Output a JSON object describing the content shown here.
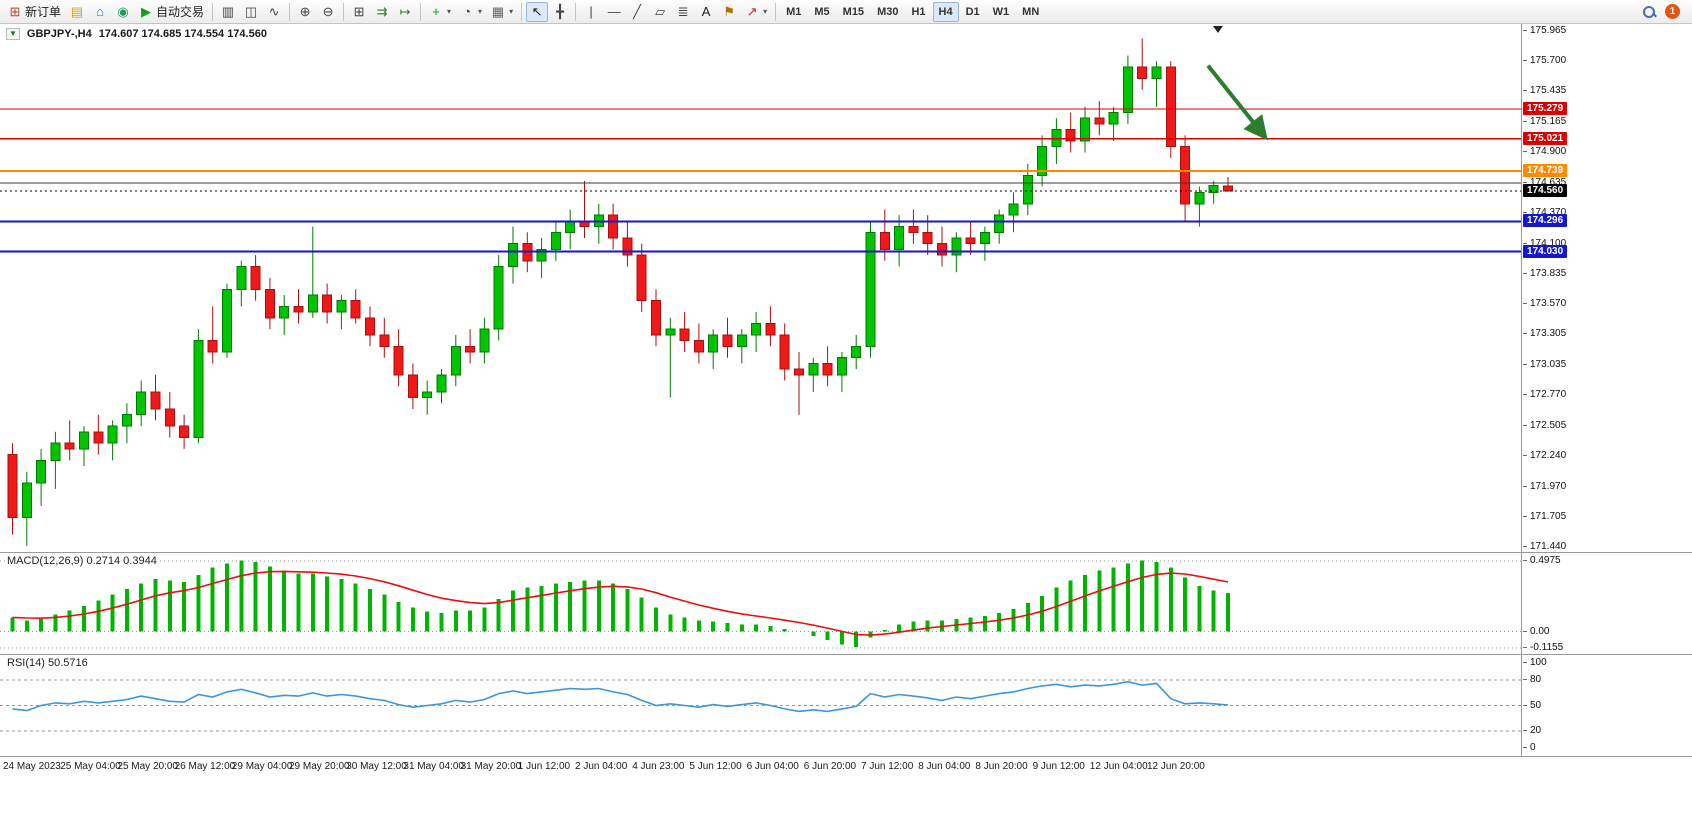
{
  "toolbar": {
    "notification_badge": "1",
    "items": [
      {
        "id": "new-order-button",
        "icon": "new-order-icon",
        "glyph": "⊞",
        "color": "#c4442a",
        "label": "新订单"
      },
      {
        "id": "market-watch-button",
        "icon": "market-watch-icon",
        "glyph": "▤",
        "color": "#d9a400"
      },
      {
        "id": "navigator-button",
        "icon": "navigator-icon",
        "glyph": "⌂",
        "color": "#3a6fc4"
      },
      {
        "id": "terminal-button",
        "icon": "terminal-icon",
        "glyph": "◉",
        "color": "#1fa05a"
      },
      {
        "id": "autotrade-button",
        "icon": "autotrade-icon",
        "glyph": "▶",
        "color": "#17a017",
        "label": "自动交易"
      },
      {
        "sep": true
      },
      {
        "id": "bar-chart-button",
        "icon": "bar-chart-icon",
        "glyph": "▥",
        "color": "#444"
      },
      {
        "id": "candlestick-chart-button",
        "icon": "candlestick-icon",
        "glyph": "◫",
        "color": "#444"
      },
      {
        "id": "line-chart-button",
        "icon": "line-chart-icon",
        "glyph": "∿",
        "color": "#444"
      },
      {
        "sep": true
      },
      {
        "id": "zoom-in-button",
        "icon": "zoom-in-icon",
        "glyph": "⊕",
        "color": "#444"
      },
      {
        "id": "zoom-out-button",
        "icon": "zoom-out-icon",
        "glyph": "⊖",
        "color": "#444"
      },
      {
        "sep": true
      },
      {
        "id": "tile-windows-button",
        "icon": "tile-windows-icon",
        "glyph": "⊞",
        "color": "#444"
      },
      {
        "id": "auto-scroll-button",
        "icon": "auto-scroll-icon",
        "glyph": "⇉",
        "color": "#2a7a2a"
      },
      {
        "id": "chart-shift-button",
        "icon": "chart-shift-icon",
        "glyph": "↦",
        "color": "#2a7a2a"
      },
      {
        "sep": true
      },
      {
        "id": "indicators-button",
        "icon": "indicators-icon",
        "glyph": "+",
        "color": "#0a9a0a",
        "dropdown": true
      },
      {
        "id": "periods-button",
        "icon": "periods-icon",
        "glyph": "◔",
        "color": "#444",
        "dropdown": true
      },
      {
        "id": "templates-button",
        "icon": "templates-icon",
        "glyph": "▦",
        "color": "#666",
        "dropdown": true
      },
      {
        "sep": true
      },
      {
        "id": "cursor-button",
        "icon": "cursor-icon",
        "glyph": "↖",
        "color": "#222",
        "active": true
      },
      {
        "id": "crosshair-button",
        "icon": "crosshair-icon",
        "glyph": "╋",
        "color": "#444"
      },
      {
        "sep": true
      },
      {
        "id": "vertical-line-button",
        "icon": "vertical-line-icon",
        "glyph": "|",
        "color": "#444"
      },
      {
        "id": "horizontal-line-button",
        "icon": "horizontal-line-icon",
        "glyph": "—",
        "color": "#444"
      },
      {
        "id": "trendline-button",
        "icon": "trendline-icon",
        "glyph": "╱",
        "color": "#444"
      },
      {
        "id": "channel-button",
        "icon": "channel-icon",
        "glyph": "▱",
        "color": "#444"
      },
      {
        "id": "fibonacci-button",
        "icon": "fibonacci-icon",
        "glyph": "≣",
        "color": "#444"
      },
      {
        "id": "text-button",
        "icon": "text-icon",
        "glyph": "A",
        "color": "#222"
      },
      {
        "id": "text-label-button",
        "icon": "text-label-icon",
        "glyph": "⚑",
        "color": "#b07000"
      },
      {
        "id": "arrows-button",
        "icon": "arrows-icon",
        "glyph": "↗",
        "color": "#cc2222",
        "dropdown": true
      },
      {
        "sep": true
      },
      {
        "id": "timeframe-m1",
        "tf": "M1"
      },
      {
        "id": "timeframe-m5",
        "tf": "M5"
      },
      {
        "id": "timeframe-m15",
        "tf": "M15"
      },
      {
        "id": "timeframe-m30",
        "tf": "M30"
      },
      {
        "id": "timeframe-h1",
        "tf": "H1"
      },
      {
        "id": "timeframe-h4",
        "tf": "H4",
        "active": true
      },
      {
        "id": "timeframe-d1",
        "tf": "D1"
      },
      {
        "id": "timeframe-w1",
        "tf": "W1"
      },
      {
        "id": "timeframe-mn",
        "tf": "MN"
      }
    ]
  },
  "chart": {
    "symbol_title": "GBPJPY-,H4",
    "ohlc_text": "174.607 174.685 174.554 174.560",
    "menu_icon_glyph": "▼"
  },
  "chart_data": {
    "type": "candlestick",
    "symbol": "GBPJPY-",
    "timeframe": "H4",
    "colors": {
      "up": "#00c400",
      "down": "#f01818",
      "up_border": "#007a00",
      "down_border": "#a80f0f"
    },
    "price_axis_ticks": [
      "175.965",
      "175.700",
      "175.435",
      "175.165",
      "174.900",
      "174.635",
      "174.370",
      "174.100",
      "173.835",
      "173.570",
      "173.305",
      "173.035",
      "172.770",
      "172.505",
      "172.240",
      "171.970",
      "171.705",
      "171.440"
    ],
    "label_every_n_candles": 4,
    "time_labels": [
      "24 May 2023",
      "25 May 04:00",
      "25 May 20:00",
      "26 May 12:00",
      "29 May 04:00",
      "29 May 20:00",
      "30 May 12:00",
      "31 May 04:00",
      "31 May 20:00",
      "1 Jun 12:00",
      "2 Jun 04:00",
      "4 Jun 23:00",
      "5 Jun 12:00",
      "6 Jun 04:00",
      "6 Jun 20:00",
      "7 Jun 12:00",
      "8 Jun 04:00",
      "8 Jun 20:00",
      "9 Jun 12:00",
      "12 Jun 04:00",
      "12 Jun 20:00"
    ],
    "candles": [
      [
        172.25,
        172.35,
        171.55,
        171.7
      ],
      [
        171.7,
        172.1,
        171.45,
        172.0
      ],
      [
        172.0,
        172.3,
        171.8,
        172.2
      ],
      [
        172.2,
        172.45,
        171.95,
        172.35
      ],
      [
        172.35,
        172.55,
        172.2,
        172.3
      ],
      [
        172.3,
        172.5,
        172.15,
        172.45
      ],
      [
        172.45,
        172.6,
        172.25,
        172.35
      ],
      [
        172.35,
        172.55,
        172.2,
        172.5
      ],
      [
        172.5,
        172.7,
        172.35,
        172.6
      ],
      [
        172.6,
        172.9,
        172.5,
        172.8
      ],
      [
        172.8,
        172.95,
        172.55,
        172.65
      ],
      [
        172.65,
        172.8,
        172.4,
        172.5
      ],
      [
        172.5,
        172.6,
        172.3,
        172.4
      ],
      [
        172.4,
        173.35,
        172.35,
        173.25
      ],
      [
        173.25,
        173.55,
        173.05,
        173.15
      ],
      [
        173.15,
        173.75,
        173.1,
        173.7
      ],
      [
        173.7,
        173.95,
        173.55,
        173.9
      ],
      [
        173.9,
        174.0,
        173.6,
        173.7
      ],
      [
        173.7,
        173.8,
        173.35,
        173.45
      ],
      [
        173.45,
        173.65,
        173.3,
        173.55
      ],
      [
        173.55,
        173.7,
        173.4,
        173.5
      ],
      [
        173.5,
        174.25,
        173.45,
        173.65
      ],
      [
        173.65,
        173.75,
        173.4,
        173.5
      ],
      [
        173.5,
        173.65,
        173.35,
        173.6
      ],
      [
        173.6,
        173.7,
        173.4,
        173.45
      ],
      [
        173.45,
        173.55,
        173.2,
        173.3
      ],
      [
        173.3,
        173.45,
        173.1,
        173.2
      ],
      [
        173.2,
        173.35,
        172.85,
        172.95
      ],
      [
        172.95,
        173.05,
        172.65,
        172.75
      ],
      [
        172.75,
        172.9,
        172.6,
        172.8
      ],
      [
        172.8,
        173.0,
        172.7,
        172.95
      ],
      [
        172.95,
        173.3,
        172.85,
        173.2
      ],
      [
        173.2,
        173.35,
        173.05,
        173.15
      ],
      [
        173.15,
        173.45,
        173.05,
        173.35
      ],
      [
        173.35,
        174.0,
        173.25,
        173.9
      ],
      [
        173.9,
        174.25,
        173.75,
        174.1
      ],
      [
        174.1,
        174.2,
        173.85,
        173.95
      ],
      [
        173.95,
        174.15,
        173.8,
        174.05
      ],
      [
        174.05,
        174.3,
        173.95,
        174.2
      ],
      [
        174.2,
        174.4,
        174.05,
        174.3
      ],
      [
        174.3,
        174.65,
        174.15,
        174.25
      ],
      [
        174.25,
        174.45,
        174.1,
        174.35
      ],
      [
        174.35,
        174.45,
        174.05,
        174.15
      ],
      [
        174.15,
        174.3,
        173.9,
        174.0
      ],
      [
        174.0,
        174.1,
        173.5,
        173.6
      ],
      [
        173.6,
        173.7,
        173.2,
        173.3
      ],
      [
        173.3,
        173.45,
        172.75,
        173.35
      ],
      [
        173.35,
        173.5,
        173.15,
        173.25
      ],
      [
        173.25,
        173.4,
        173.05,
        173.15
      ],
      [
        173.15,
        173.35,
        173.0,
        173.3
      ],
      [
        173.3,
        173.45,
        173.1,
        173.2
      ],
      [
        173.2,
        173.35,
        173.05,
        173.3
      ],
      [
        173.3,
        173.5,
        173.15,
        173.4
      ],
      [
        173.4,
        173.55,
        173.2,
        173.3
      ],
      [
        173.3,
        173.4,
        172.9,
        173.0
      ],
      [
        173.0,
        173.15,
        172.6,
        172.95
      ],
      [
        172.95,
        173.1,
        172.8,
        173.05
      ],
      [
        173.05,
        173.2,
        172.85,
        172.95
      ],
      [
        172.95,
        173.15,
        172.8,
        173.1
      ],
      [
        173.1,
        173.3,
        173.0,
        173.2
      ],
      [
        173.2,
        174.3,
        173.1,
        174.2
      ],
      [
        174.2,
        174.4,
        173.95,
        174.05
      ],
      [
        174.05,
        174.35,
        173.9,
        174.25
      ],
      [
        174.25,
        174.4,
        174.1,
        174.2
      ],
      [
        174.2,
        174.35,
        174.0,
        174.1
      ],
      [
        174.1,
        174.25,
        173.9,
        174.0
      ],
      [
        174.0,
        174.2,
        173.85,
        174.15
      ],
      [
        174.15,
        174.3,
        174.0,
        174.1
      ],
      [
        174.1,
        174.25,
        173.95,
        174.2
      ],
      [
        174.2,
        174.4,
        174.1,
        174.35
      ],
      [
        174.35,
        174.55,
        174.2,
        174.45
      ],
      [
        174.45,
        174.8,
        174.35,
        174.7
      ],
      [
        174.7,
        175.05,
        174.6,
        174.95
      ],
      [
        174.95,
        175.2,
        174.8,
        175.1
      ],
      [
        175.1,
        175.25,
        174.9,
        175.0
      ],
      [
        175.0,
        175.3,
        174.9,
        175.2
      ],
      [
        175.2,
        175.35,
        175.05,
        175.15
      ],
      [
        175.15,
        175.3,
        175.0,
        175.25
      ],
      [
        175.25,
        175.75,
        175.15,
        175.65
      ],
      [
        175.65,
        175.9,
        175.45,
        175.55
      ],
      [
        175.55,
        175.7,
        175.3,
        175.65
      ],
      [
        175.65,
        175.7,
        174.85,
        174.95
      ],
      [
        174.95,
        175.05,
        174.3,
        174.45
      ],
      [
        174.45,
        174.6,
        174.25,
        174.55
      ],
      [
        174.55,
        174.65,
        174.45,
        174.61
      ],
      [
        174.607,
        174.685,
        174.554,
        174.56
      ]
    ],
    "horizontal_lines": [
      {
        "price": 175.279,
        "color": "#dd0000",
        "width": 1,
        "tag": "175.279"
      },
      {
        "price": 175.021,
        "color": "#dd0000",
        "width": 1.5,
        "tag": "175.021"
      },
      {
        "price": 174.739,
        "color": "#ff8a00",
        "width": 2,
        "tag": "174.739"
      },
      {
        "price": 174.63,
        "color": "#3a3a3a",
        "width": 1
      },
      {
        "price": 174.56,
        "color": "#000000",
        "width": 1,
        "tag": "174.560",
        "style": "dotted"
      },
      {
        "price": 174.296,
        "color": "#1616cc",
        "width": 2,
        "tag": "174.296"
      },
      {
        "price": 174.03,
        "color": "#1616cc",
        "width": 2,
        "tag": "174.030"
      }
    ],
    "arrow_annotation": {
      "color": "#2e7d2e",
      "points_to_price": 175.021
    },
    "indicators": {
      "macd": {
        "label": "MACD(12,26,9) 0.2714 0.3944",
        "axis_ticks": [
          "0.4975",
          "0.00",
          "-0.1155"
        ],
        "axis_max": 0.4975,
        "axis_min": -0.1155,
        "hist_color": "#00b400",
        "signal_color": "#e81010",
        "signal_period": 9,
        "values": [
          0.1,
          0.08,
          0.09,
          0.12,
          0.15,
          0.18,
          0.22,
          0.26,
          0.3,
          0.34,
          0.37,
          0.36,
          0.35,
          0.4,
          0.45,
          0.48,
          0.5,
          0.49,
          0.46,
          0.43,
          0.41,
          0.41,
          0.39,
          0.37,
          0.34,
          0.3,
          0.26,
          0.21,
          0.17,
          0.14,
          0.13,
          0.15,
          0.15,
          0.17,
          0.23,
          0.29,
          0.31,
          0.32,
          0.34,
          0.35,
          0.36,
          0.36,
          0.34,
          0.3,
          0.24,
          0.17,
          0.12,
          0.1,
          0.08,
          0.07,
          0.06,
          0.05,
          0.05,
          0.04,
          0.02,
          0.0,
          -0.03,
          -0.06,
          -0.09,
          -0.11,
          -0.04,
          0.01,
          0.05,
          0.07,
          0.08,
          0.08,
          0.09,
          0.1,
          0.11,
          0.13,
          0.16,
          0.2,
          0.25,
          0.31,
          0.36,
          0.4,
          0.43,
          0.45,
          0.48,
          0.5,
          0.49,
          0.45,
          0.38,
          0.32,
          0.29,
          0.2714
        ]
      },
      "rsi": {
        "label": "RSI(14) 50.5716",
        "axis_ticks": [
          "100",
          "80",
          "50",
          "20",
          "0"
        ],
        "levels": [
          80,
          50,
          20
        ],
        "color": "#3c96dc",
        "values": [
          46,
          44,
          50,
          53,
          52,
          55,
          53,
          55,
          57,
          61,
          58,
          55,
          54,
          63,
          60,
          66,
          69,
          65,
          60,
          62,
          61,
          65,
          61,
          63,
          61,
          58,
          56,
          51,
          48,
          50,
          52,
          56,
          54,
          57,
          64,
          67,
          64,
          66,
          68,
          70,
          69,
          70,
          66,
          63,
          56,
          50,
          52,
          50,
          48,
          51,
          49,
          51,
          53,
          50,
          46,
          43,
          45,
          43,
          46,
          49,
          64,
          60,
          63,
          61,
          59,
          56,
          60,
          58,
          61,
          64,
          66,
          70,
          73,
          75,
          72,
          74,
          73,
          75,
          78,
          74,
          76,
          58,
          52,
          53,
          52,
          50.57
        ]
      }
    }
  }
}
